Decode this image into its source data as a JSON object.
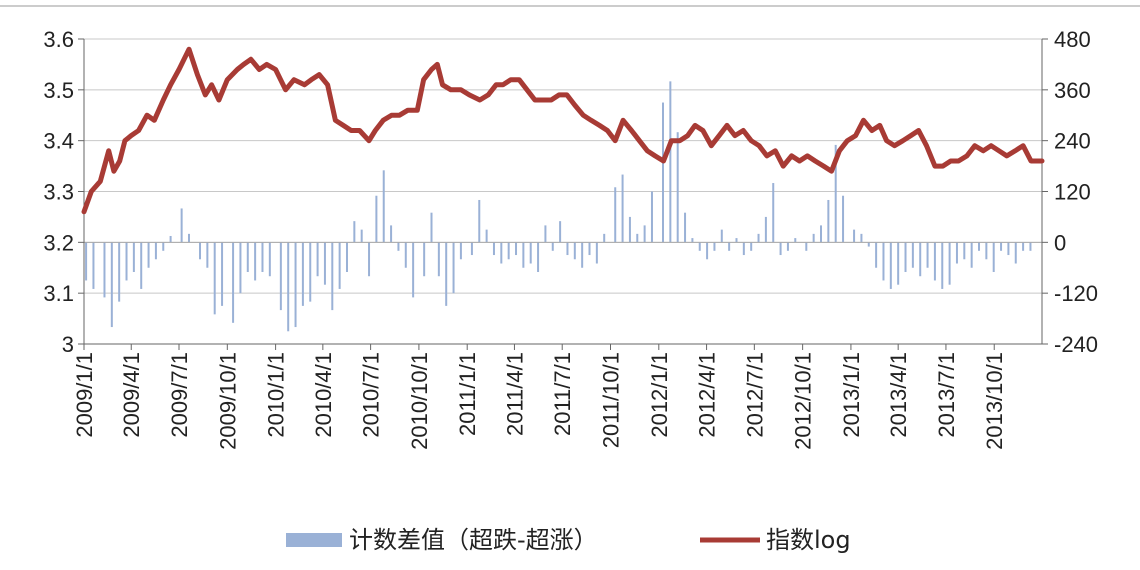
{
  "chart_data": {
    "type": "bar+line",
    "left_axis": {
      "ylim": [
        3.0,
        3.6
      ],
      "ticks": [
        "3",
        "3.1",
        "3.2",
        "3.3",
        "3.4",
        "3.5",
        "3.6"
      ]
    },
    "right_axis": {
      "ylim": [
        -240,
        480
      ],
      "ticks": [
        "-240",
        "-120",
        "0",
        "120",
        "240",
        "360",
        "480"
      ]
    },
    "x_axis": {
      "range": [
        "2009-01-01",
        "2013-12-31"
      ],
      "tick_labels": [
        "2009/1/1",
        "2009/4/1",
        "2009/7/1",
        "2009/10/1",
        "2010/1/1",
        "2010/4/1",
        "2010/7/1",
        "2010/10/1",
        "2011/1/1",
        "2011/4/1",
        "2011/7/1",
        "2011/10/1",
        "2012/1/1",
        "2012/4/1",
        "2012/7/1",
        "2012/10/1",
        "2013/1/1",
        "2013/4/1",
        "2013/7/1",
        "2013/10/1"
      ]
    },
    "grid": true,
    "legend_position": "bottom",
    "series": [
      {
        "name": "计数差值（超跌-超涨）",
        "type": "bar",
        "axis": "right",
        "color": "#9ab1d6",
        "points": [
          [
            "2009-01-05",
            -90
          ],
          [
            "2009-01-19",
            -110
          ],
          [
            "2009-02-09",
            -130
          ],
          [
            "2009-02-23",
            -200
          ],
          [
            "2009-03-09",
            -140
          ],
          [
            "2009-03-23",
            -90
          ],
          [
            "2009-04-06",
            -70
          ],
          [
            "2009-04-20",
            -110
          ],
          [
            "2009-05-04",
            -60
          ],
          [
            "2009-05-18",
            -40
          ],
          [
            "2009-06-01",
            -20
          ],
          [
            "2009-06-15",
            15
          ],
          [
            "2009-07-06",
            80
          ],
          [
            "2009-07-20",
            20
          ],
          [
            "2009-08-10",
            -40
          ],
          [
            "2009-08-24",
            -60
          ],
          [
            "2009-09-07",
            -170
          ],
          [
            "2009-09-21",
            -150
          ],
          [
            "2009-10-12",
            -190
          ],
          [
            "2009-10-26",
            -120
          ],
          [
            "2009-11-09",
            -70
          ],
          [
            "2009-11-23",
            -90
          ],
          [
            "2009-12-07",
            -70
          ],
          [
            "2009-12-21",
            -80
          ],
          [
            "2010-01-11",
            -160
          ],
          [
            "2010-01-25",
            -210
          ],
          [
            "2010-02-08",
            -200
          ],
          [
            "2010-02-22",
            -150
          ],
          [
            "2010-03-08",
            -140
          ],
          [
            "2010-03-22",
            -80
          ],
          [
            "2010-04-05",
            -100
          ],
          [
            "2010-04-19",
            -160
          ],
          [
            "2010-05-03",
            -110
          ],
          [
            "2010-05-17",
            -70
          ],
          [
            "2010-05-31",
            50
          ],
          [
            "2010-06-14",
            30
          ],
          [
            "2010-06-28",
            -80
          ],
          [
            "2010-07-12",
            110
          ],
          [
            "2010-07-26",
            170
          ],
          [
            "2010-08-09",
            40
          ],
          [
            "2010-08-23",
            -20
          ],
          [
            "2010-09-06",
            -60
          ],
          [
            "2010-09-20",
            -130
          ],
          [
            "2010-10-11",
            -80
          ],
          [
            "2010-10-25",
            70
          ],
          [
            "2010-11-08",
            -80
          ],
          [
            "2010-11-22",
            -150
          ],
          [
            "2010-12-06",
            -120
          ],
          [
            "2010-12-20",
            -40
          ],
          [
            "2011-01-10",
            -30
          ],
          [
            "2011-01-24",
            100
          ],
          [
            "2011-02-07",
            30
          ],
          [
            "2011-02-21",
            -30
          ],
          [
            "2011-03-07",
            -50
          ],
          [
            "2011-03-21",
            -40
          ],
          [
            "2011-04-04",
            -30
          ],
          [
            "2011-04-18",
            -60
          ],
          [
            "2011-05-02",
            -50
          ],
          [
            "2011-05-16",
            -70
          ],
          [
            "2011-05-30",
            40
          ],
          [
            "2011-06-13",
            -20
          ],
          [
            "2011-06-27",
            50
          ],
          [
            "2011-07-11",
            -30
          ],
          [
            "2011-07-25",
            -40
          ],
          [
            "2011-08-08",
            -60
          ],
          [
            "2011-08-22",
            -30
          ],
          [
            "2011-09-05",
            -50
          ],
          [
            "2011-09-19",
            20
          ],
          [
            "2011-10-10",
            130
          ],
          [
            "2011-10-24",
            160
          ],
          [
            "2011-11-07",
            60
          ],
          [
            "2011-11-21",
            20
          ],
          [
            "2011-12-05",
            40
          ],
          [
            "2011-12-19",
            120
          ],
          [
            "2012-01-09",
            330
          ],
          [
            "2012-01-23",
            380
          ],
          [
            "2012-02-06",
            260
          ],
          [
            "2012-02-20",
            70
          ],
          [
            "2012-03-05",
            10
          ],
          [
            "2012-03-19",
            -20
          ],
          [
            "2012-04-02",
            -40
          ],
          [
            "2012-04-16",
            -20
          ],
          [
            "2012-04-30",
            30
          ],
          [
            "2012-05-14",
            -20
          ],
          [
            "2012-05-28",
            10
          ],
          [
            "2012-06-11",
            -30
          ],
          [
            "2012-06-25",
            -20
          ],
          [
            "2012-07-09",
            20
          ],
          [
            "2012-07-23",
            60
          ],
          [
            "2012-08-06",
            140
          ],
          [
            "2012-08-20",
            -30
          ],
          [
            "2012-09-03",
            -20
          ],
          [
            "2012-09-17",
            10
          ],
          [
            "2012-10-08",
            -20
          ],
          [
            "2012-10-22",
            20
          ],
          [
            "2012-11-05",
            40
          ],
          [
            "2012-11-19",
            100
          ],
          [
            "2012-12-03",
            230
          ],
          [
            "2012-12-17",
            110
          ],
          [
            "2013-01-07",
            30
          ],
          [
            "2013-01-21",
            20
          ],
          [
            "2013-02-04",
            -10
          ],
          [
            "2013-02-18",
            -60
          ],
          [
            "2013-03-04",
            -90
          ],
          [
            "2013-03-18",
            -110
          ],
          [
            "2013-04-01",
            -100
          ],
          [
            "2013-04-15",
            -70
          ],
          [
            "2013-04-29",
            -60
          ],
          [
            "2013-05-13",
            -80
          ],
          [
            "2013-05-27",
            -60
          ],
          [
            "2013-06-10",
            -90
          ],
          [
            "2013-06-24",
            -110
          ],
          [
            "2013-07-08",
            -100
          ],
          [
            "2013-07-22",
            -50
          ],
          [
            "2013-08-05",
            -40
          ],
          [
            "2013-08-19",
            -60
          ],
          [
            "2013-09-02",
            -20
          ],
          [
            "2013-09-16",
            -40
          ],
          [
            "2013-09-30",
            -70
          ],
          [
            "2013-10-14",
            -20
          ],
          [
            "2013-10-28",
            -30
          ],
          [
            "2013-11-11",
            -50
          ],
          [
            "2013-11-25",
            -20
          ],
          [
            "2013-12-09",
            -20
          ]
        ]
      },
      {
        "name": "指数log",
        "type": "line",
        "axis": "left",
        "color": "#a83b35",
        "points": [
          [
            "2009-01-01",
            3.26
          ],
          [
            "2009-01-15",
            3.3
          ],
          [
            "2009-02-01",
            3.32
          ],
          [
            "2009-02-17",
            3.38
          ],
          [
            "2009-02-27",
            3.34
          ],
          [
            "2009-03-10",
            3.36
          ],
          [
            "2009-03-20",
            3.4
          ],
          [
            "2009-04-01",
            3.41
          ],
          [
            "2009-04-15",
            3.42
          ],
          [
            "2009-05-01",
            3.45
          ],
          [
            "2009-05-15",
            3.44
          ],
          [
            "2009-06-01",
            3.48
          ],
          [
            "2009-06-15",
            3.51
          ],
          [
            "2009-07-01",
            3.54
          ],
          [
            "2009-07-20",
            3.58
          ],
          [
            "2009-08-05",
            3.53
          ],
          [
            "2009-08-20",
            3.49
          ],
          [
            "2009-09-01",
            3.51
          ],
          [
            "2009-09-15",
            3.48
          ],
          [
            "2009-10-01",
            3.52
          ],
          [
            "2009-10-20",
            3.54
          ],
          [
            "2009-11-01",
            3.55
          ],
          [
            "2009-11-15",
            3.56
          ],
          [
            "2009-12-01",
            3.54
          ],
          [
            "2009-12-15",
            3.55
          ],
          [
            "2010-01-01",
            3.54
          ],
          [
            "2010-01-20",
            3.5
          ],
          [
            "2010-02-05",
            3.52
          ],
          [
            "2010-02-25",
            3.51
          ],
          [
            "2010-03-10",
            3.52
          ],
          [
            "2010-03-25",
            3.53
          ],
          [
            "2010-04-10",
            3.51
          ],
          [
            "2010-04-25",
            3.44
          ],
          [
            "2010-05-10",
            3.43
          ],
          [
            "2010-05-25",
            3.42
          ],
          [
            "2010-06-10",
            3.42
          ],
          [
            "2010-06-28",
            3.4
          ],
          [
            "2010-07-10",
            3.42
          ],
          [
            "2010-07-25",
            3.44
          ],
          [
            "2010-08-10",
            3.45
          ],
          [
            "2010-08-25",
            3.45
          ],
          [
            "2010-09-10",
            3.46
          ],
          [
            "2010-09-28",
            3.46
          ],
          [
            "2010-10-10",
            3.52
          ],
          [
            "2010-10-25",
            3.54
          ],
          [
            "2010-11-05",
            3.55
          ],
          [
            "2010-11-15",
            3.51
          ],
          [
            "2010-12-01",
            3.5
          ],
          [
            "2010-12-20",
            3.5
          ],
          [
            "2011-01-05",
            3.49
          ],
          [
            "2011-01-25",
            3.48
          ],
          [
            "2011-02-10",
            3.49
          ],
          [
            "2011-02-25",
            3.51
          ],
          [
            "2011-03-10",
            3.51
          ],
          [
            "2011-03-25",
            3.52
          ],
          [
            "2011-04-10",
            3.52
          ],
          [
            "2011-04-25",
            3.5
          ],
          [
            "2011-05-10",
            3.48
          ],
          [
            "2011-05-25",
            3.48
          ],
          [
            "2011-06-10",
            3.48
          ],
          [
            "2011-06-25",
            3.49
          ],
          [
            "2011-07-10",
            3.49
          ],
          [
            "2011-07-25",
            3.47
          ],
          [
            "2011-08-10",
            3.45
          ],
          [
            "2011-08-25",
            3.44
          ],
          [
            "2011-09-10",
            3.43
          ],
          [
            "2011-09-25",
            3.42
          ],
          [
            "2011-10-10",
            3.4
          ],
          [
            "2011-10-25",
            3.44
          ],
          [
            "2011-11-10",
            3.42
          ],
          [
            "2011-11-25",
            3.4
          ],
          [
            "2011-12-10",
            3.38
          ],
          [
            "2011-12-25",
            3.37
          ],
          [
            "2012-01-10",
            3.36
          ],
          [
            "2012-01-25",
            3.4
          ],
          [
            "2012-02-10",
            3.4
          ],
          [
            "2012-02-25",
            3.41
          ],
          [
            "2012-03-10",
            3.43
          ],
          [
            "2012-03-25",
            3.42
          ],
          [
            "2012-04-10",
            3.39
          ],
          [
            "2012-04-25",
            3.41
          ],
          [
            "2012-05-10",
            3.43
          ],
          [
            "2012-05-25",
            3.41
          ],
          [
            "2012-06-10",
            3.42
          ],
          [
            "2012-06-25",
            3.4
          ],
          [
            "2012-07-10",
            3.39
          ],
          [
            "2012-07-25",
            3.37
          ],
          [
            "2012-08-10",
            3.38
          ],
          [
            "2012-08-25",
            3.35
          ],
          [
            "2012-09-10",
            3.37
          ],
          [
            "2012-09-25",
            3.36
          ],
          [
            "2012-10-10",
            3.37
          ],
          [
            "2012-10-25",
            3.36
          ],
          [
            "2012-11-10",
            3.35
          ],
          [
            "2012-11-25",
            3.34
          ],
          [
            "2012-12-10",
            3.38
          ],
          [
            "2012-12-25",
            3.4
          ],
          [
            "2013-01-10",
            3.41
          ],
          [
            "2013-01-25",
            3.44
          ],
          [
            "2013-02-10",
            3.42
          ],
          [
            "2013-02-25",
            3.43
          ],
          [
            "2013-03-10",
            3.4
          ],
          [
            "2013-03-25",
            3.39
          ],
          [
            "2013-04-10",
            3.4
          ],
          [
            "2013-04-25",
            3.41
          ],
          [
            "2013-05-10",
            3.42
          ],
          [
            "2013-05-25",
            3.39
          ],
          [
            "2013-06-10",
            3.35
          ],
          [
            "2013-06-25",
            3.35
          ],
          [
            "2013-07-10",
            3.36
          ],
          [
            "2013-07-25",
            3.36
          ],
          [
            "2013-08-10",
            3.37
          ],
          [
            "2013-08-25",
            3.39
          ],
          [
            "2013-09-10",
            3.38
          ],
          [
            "2013-09-25",
            3.39
          ],
          [
            "2013-10-10",
            3.38
          ],
          [
            "2013-10-25",
            3.37
          ],
          [
            "2013-11-10",
            3.38
          ],
          [
            "2013-11-25",
            3.39
          ],
          [
            "2013-12-10",
            3.36
          ],
          [
            "2013-12-31",
            3.36
          ]
        ]
      }
    ]
  }
}
